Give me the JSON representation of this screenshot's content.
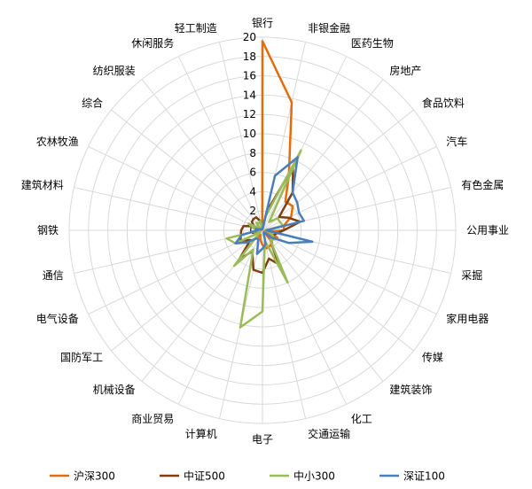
{
  "chart_data": {
    "type": "radar",
    "categories": [
      "银行",
      "非银金融",
      "医药生物",
      "房地产",
      "食品饮料",
      "汽车",
      "有色金属",
      "公用事业",
      "采掘",
      "家用电器",
      "传媒",
      "建筑装饰",
      "化工",
      "交通运输",
      "电子",
      "计算机",
      "商业贸易",
      "机械设备",
      "国防军工",
      "电气设备",
      "通信",
      "钢铁",
      "建筑材料",
      "农林牧渔",
      "综合",
      "纺织服装",
      "休闲服务",
      "轻工制造"
    ],
    "rmin": 0,
    "rmax": 20,
    "ticks": [
      0,
      2,
      4,
      6,
      8,
      10,
      12,
      14,
      16,
      18,
      20
    ],
    "grid": true,
    "legend_position": "bottom",
    "series": [
      {
        "name": "沪深300",
        "color": "#E46C0A",
        "values": [
          19.6,
          13.6,
          6.3,
          3.8,
          4.0,
          3.3,
          2.3,
          2.2,
          0.6,
          1.7,
          0.2,
          1.6,
          1.8,
          1.9,
          1.5,
          1.0,
          0.5,
          1.1,
          0.4,
          0.9,
          0.9,
          0.2,
          0.3,
          0.1,
          0.1,
          0.1,
          0.3,
          0.1
        ]
      },
      {
        "name": "中证500",
        "color": "#7F3F10",
        "values": [
          0.1,
          2.0,
          7.3,
          5.0,
          2.2,
          3.0,
          4.0,
          2.2,
          1.5,
          1.2,
          1.5,
          1.3,
          3.9,
          3.0,
          4.4,
          4.2,
          2.4,
          3.9,
          1.6,
          2.5,
          2.3,
          2.2,
          2.0,
          1.0,
          1.4,
          1.5,
          1.5,
          1.0
        ]
      },
      {
        "name": "中小300",
        "color": "#9BBB59",
        "values": [
          0.1,
          1.5,
          9.2,
          1.1,
          2.0,
          2.0,
          2.2,
          0.3,
          0.6,
          1.2,
          1.5,
          1.3,
          6.0,
          1.1,
          8.4,
          10.3,
          2.2,
          4.7,
          0.3,
          3.1,
          3.8,
          0.3,
          0.9,
          1.6,
          0.3,
          1.0,
          0.8,
          1.0
        ]
      },
      {
        "name": "深证100",
        "color": "#4A7EBB",
        "values": [
          0.1,
          5.8,
          8.4,
          5.0,
          4.6,
          4.2,
          4.4,
          0.4,
          5.3,
          3.0,
          1.2,
          0.3,
          0.3,
          1.5,
          1.9,
          2.5,
          1.0,
          1.1,
          2.0,
          3.1,
          2.2,
          0.5,
          0.7,
          0.2,
          0.2,
          0.1,
          0.1,
          0.1
        ]
      }
    ]
  }
}
